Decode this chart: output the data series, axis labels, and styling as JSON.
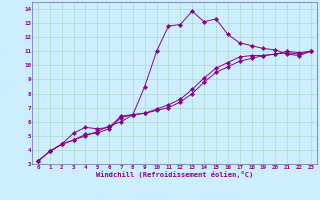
{
  "background_color": "#cceeff",
  "grid_color": "#b0d8cc",
  "line_color": "#880088",
  "xlabel": "Windchill (Refroidissement éolien,°C)",
  "ylim": [
    3,
    14.5
  ],
  "xlim": [
    -0.5,
    23.5
  ],
  "line1_x": [
    0,
    1,
    2,
    3,
    4,
    5,
    6,
    7,
    8,
    9,
    10,
    11,
    12,
    13,
    14,
    15,
    16,
    17,
    18,
    19,
    20,
    21,
    22,
    23
  ],
  "line1_y": [
    3.2,
    3.9,
    4.4,
    4.7,
    5.0,
    5.3,
    5.7,
    6.0,
    6.5,
    8.5,
    11.0,
    12.8,
    12.9,
    13.85,
    13.1,
    13.3,
    12.2,
    11.6,
    11.4,
    11.2,
    11.1,
    10.8,
    10.7,
    11.0
  ],
  "line2_x": [
    0,
    1,
    2,
    3,
    4,
    5,
    6,
    7,
    8,
    9,
    10,
    11,
    12,
    13,
    14,
    15,
    16,
    17,
    18,
    19,
    20,
    21,
    22,
    23
  ],
  "line2_y": [
    3.2,
    3.9,
    4.4,
    5.2,
    5.6,
    5.5,
    5.6,
    6.4,
    6.5,
    6.6,
    6.8,
    7.0,
    7.4,
    8.0,
    8.8,
    9.5,
    9.9,
    10.3,
    10.5,
    10.7,
    10.8,
    11.0,
    10.9,
    11.0
  ],
  "line3_x": [
    0,
    1,
    2,
    3,
    4,
    5,
    6,
    7,
    8,
    9,
    10,
    11,
    12,
    13,
    14,
    15,
    16,
    17,
    18,
    19,
    20,
    21,
    22,
    23
  ],
  "line3_y": [
    3.2,
    3.9,
    4.4,
    4.7,
    5.1,
    5.2,
    5.5,
    6.3,
    6.5,
    6.6,
    6.9,
    7.2,
    7.6,
    8.3,
    9.1,
    9.8,
    10.2,
    10.6,
    10.7,
    10.7,
    10.8,
    10.9,
    10.8,
    11.0
  ],
  "xtick_labels": [
    "0",
    "1",
    "2",
    "3",
    "4",
    "5",
    "6",
    "7",
    "8",
    "9",
    "10",
    "11",
    "12",
    "13",
    "14",
    "15",
    "16",
    "17",
    "18",
    "19",
    "20",
    "21",
    "22",
    "23"
  ],
  "ytick_values": [
    3,
    4,
    5,
    6,
    7,
    8,
    9,
    10,
    11,
    12,
    13,
    14
  ],
  "title_color": "#880088",
  "spine_color": "#6666aa"
}
